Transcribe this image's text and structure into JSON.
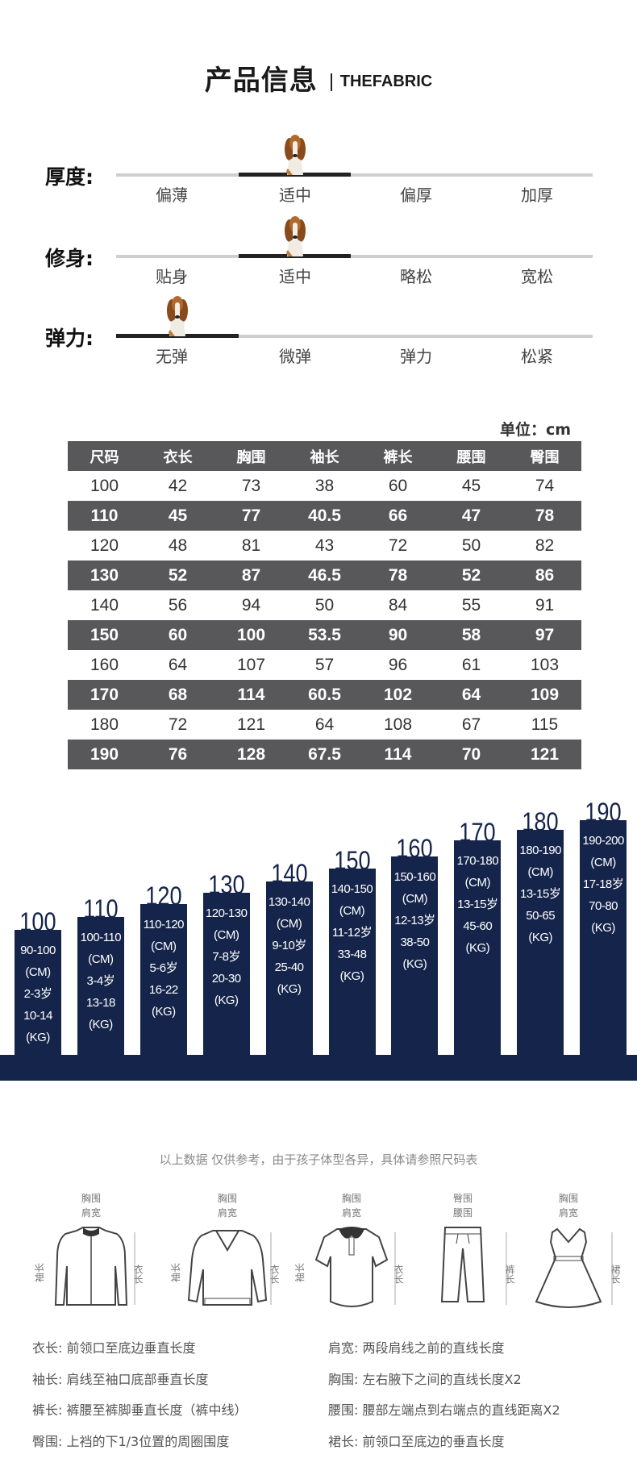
{
  "header": {
    "title": "产品信息",
    "subtitle": "THEFABRIC"
  },
  "attributes": [
    {
      "label": "厚度:",
      "options": [
        "偏薄",
        "适中",
        "偏厚",
        "加厚"
      ],
      "selected_index": 1
    },
    {
      "label": "修身:",
      "options": [
        "贴身",
        "适中",
        "略松",
        "宽松"
      ],
      "selected_index": 1
    },
    {
      "label": "弹力:",
      "options": [
        "无弹",
        "微弹",
        "弹力",
        "松紧"
      ],
      "selected_index": 0
    }
  ],
  "size_table": {
    "unit": "单位：cm",
    "headers": [
      "尺码",
      "衣长",
      "胸围",
      "袖长",
      "裤长",
      "腰围",
      "臀围"
    ],
    "rows": [
      [
        "100",
        "42",
        "73",
        "38",
        "60",
        "45",
        "74"
      ],
      [
        "110",
        "45",
        "77",
        "40.5",
        "66",
        "47",
        "78"
      ],
      [
        "120",
        "48",
        "81",
        "43",
        "72",
        "50",
        "82"
      ],
      [
        "130",
        "52",
        "87",
        "46.5",
        "78",
        "52",
        "86"
      ],
      [
        "140",
        "56",
        "94",
        "50",
        "84",
        "55",
        "91"
      ],
      [
        "150",
        "60",
        "100",
        "53.5",
        "90",
        "58",
        "97"
      ],
      [
        "160",
        "64",
        "107",
        "57",
        "96",
        "61",
        "103"
      ],
      [
        "170",
        "68",
        "114",
        "60.5",
        "102",
        "64",
        "109"
      ],
      [
        "180",
        "72",
        "121",
        "64",
        "108",
        "67",
        "115"
      ],
      [
        "190",
        "76",
        "128",
        "67.5",
        "114",
        "70",
        "121"
      ]
    ]
  },
  "size_guide": [
    {
      "size": "100",
      "lines": [
        "90-100",
        "(CM)",
        "2-3岁",
        "10-14",
        "(KG)"
      ]
    },
    {
      "size": "110",
      "lines": [
        "100-110",
        "(CM)",
        "3-4岁",
        "13-18",
        "(KG)"
      ]
    },
    {
      "size": "120",
      "lines": [
        "110-120",
        "(CM)",
        "5-6岁",
        "16-22",
        "(KG)"
      ]
    },
    {
      "size": "130",
      "lines": [
        "120-130",
        "(CM)",
        "7-8岁",
        "20-30",
        "(KG)"
      ]
    },
    {
      "size": "140",
      "lines": [
        "130-140",
        "(CM)",
        "9-10岁",
        "25-40",
        "(KG)"
      ]
    },
    {
      "size": "150",
      "lines": [
        "140-150",
        "(CM)",
        "11-12岁",
        "33-48",
        "(KG)"
      ]
    },
    {
      "size": "160",
      "lines": [
        "150-160",
        "(CM)",
        "12-13岁",
        "38-50",
        "(KG)"
      ]
    },
    {
      "size": "170",
      "lines": [
        "170-180",
        "(CM)",
        "13-15岁",
        "45-60",
        "(KG)"
      ]
    },
    {
      "size": "180",
      "lines": [
        "180-190",
        "(CM)",
        "13-15岁",
        "50-65",
        "(KG)"
      ]
    },
    {
      "size": "190",
      "lines": [
        "190-200",
        "(CM)",
        "17-18岁",
        "70-80",
        "(KG)"
      ]
    }
  ],
  "colors": {
    "navy": "#15244a",
    "table_dark": "#58585b"
  },
  "note": "以上数据 仅供参考，由于孩子体型各异，具体请参照尺码表",
  "garments": [
    {
      "type": "jacket",
      "top": "胸围",
      "mid": "肩宽",
      "left": "袖长",
      "right": "衣长"
    },
    {
      "type": "sweater",
      "top": "胸围",
      "mid": "肩宽",
      "left": "袖长",
      "right": "衣长"
    },
    {
      "type": "polo",
      "top": "胸围",
      "mid": "肩宽",
      "left": "袖长",
      "right": "衣长"
    },
    {
      "type": "pants",
      "top": "臀围",
      "mid": "腰围",
      "left": "",
      "right": "裤长"
    },
    {
      "type": "dress",
      "top": "胸围",
      "mid": "肩宽",
      "left": "",
      "right": "裙长"
    }
  ],
  "definitions": {
    "left": [
      "衣长: 前领口至底边垂直长度",
      "袖长: 肩线至袖口底部垂直长度",
      "裤长: 裤腰至裤脚垂直长度（裤中线）",
      "臀围: 上裆的下1/3位置的周圈围度"
    ],
    "right": [
      "肩宽: 两段肩线之前的直线长度",
      "胸围: 左右腋下之间的直线长度X2",
      "腰围: 腰部左端点到右端点的直线距离X2",
      "裙长: 前领口至底边的垂直长度"
    ]
  }
}
